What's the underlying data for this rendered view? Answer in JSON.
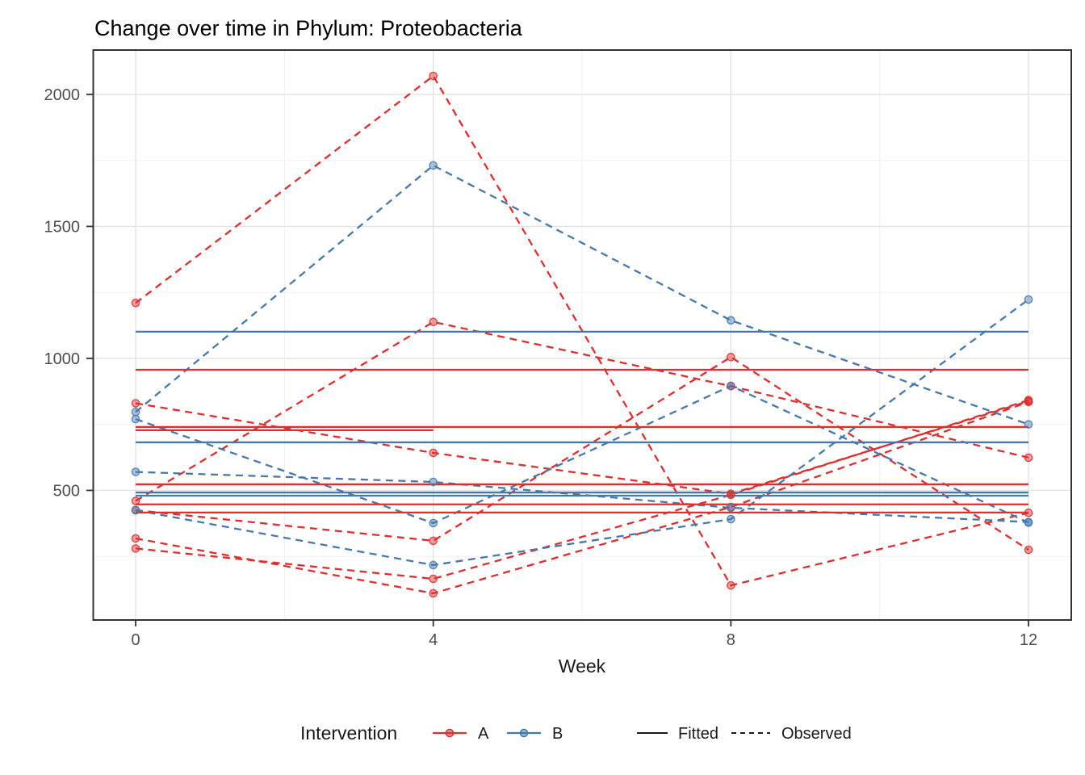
{
  "title": "Change over time in Phylum: Proteobacteria",
  "legend": {
    "title": "Intervention",
    "groups": [
      {
        "label": "A",
        "color": "#E02D2D"
      },
      {
        "label": "B",
        "color": "#4579AE"
      }
    ],
    "linetypes": [
      {
        "label": "Fitted",
        "style": "solid"
      },
      {
        "label": "Observed",
        "style": "dashed"
      }
    ]
  },
  "colors": {
    "group_a": "#E02D2D",
    "group_b": "#4579AE",
    "panel_border": "#333333",
    "grid_major": "#e2e2e2",
    "grid_minor": "#efefef",
    "tick_text": "#4d4d4d",
    "background": "#ffffff"
  },
  "chart_data": {
    "type": "line",
    "title": "Change over time in Phylum: Proteobacteria",
    "xlabel": "Week",
    "ylabel": "",
    "x_weeks": [
      0,
      4,
      8,
      12
    ],
    "x_axis": {
      "label": "Week",
      "ticks": [
        0,
        4,
        8,
        12
      ],
      "minor": [
        2,
        6,
        10
      ],
      "range": [
        -0.57,
        12.575
      ]
    },
    "y_axis": {
      "ticks": [
        500,
        1000,
        1500,
        2000
      ],
      "minor": [
        250,
        750,
        1250,
        1750
      ],
      "range": [
        9,
        2168
      ]
    },
    "legend_position": "bottom",
    "grid": "on",
    "observed_series": [
      {
        "group": "A",
        "values": [
          1210,
          2070,
          140,
          415
        ]
      },
      {
        "group": "A",
        "values": [
          830,
          642,
          487,
          838
        ]
      },
      {
        "group": "A",
        "values": [
          460,
          1138,
          895,
          624
        ]
      },
      {
        "group": "A",
        "values": [
          425,
          309,
          1005,
          275
        ]
      },
      {
        "group": "A",
        "values": [
          318,
          110,
          437,
          835
        ]
      },
      {
        "group": "A",
        "values": [
          280,
          165,
          483,
          842
        ]
      },
      {
        "group": "B",
        "values": [
          797,
          1731,
          1144,
          750
        ]
      },
      {
        "group": "B",
        "values": [
          770,
          376,
          896,
          378
        ]
      },
      {
        "group": "B",
        "values": [
          570,
          532,
          434,
          380
        ]
      },
      {
        "group": "B",
        "values": [
          425,
          217,
          391,
          1223
        ]
      }
    ],
    "fitted_lines": [
      {
        "group": "A",
        "value": 957,
        "weeks": [
          0,
          12
        ]
      },
      {
        "group": "A",
        "value": 740,
        "weeks": [
          0,
          12
        ]
      },
      {
        "group": "A",
        "value": 728,
        "weeks": [
          0,
          4
        ]
      },
      {
        "group": "A",
        "value": 523,
        "weeks": [
          0,
          12
        ]
      },
      {
        "group": "A",
        "value": 447,
        "weeks": [
          0,
          12
        ]
      },
      {
        "group": "A",
        "value": 416,
        "weeks": [
          0,
          12
        ]
      },
      {
        "group": "B",
        "value": 1101,
        "weeks": [
          0,
          12
        ]
      },
      {
        "group": "B",
        "value": 682,
        "weeks": [
          0,
          12
        ]
      },
      {
        "group": "B",
        "value": 492,
        "weeks": [
          0,
          12
        ]
      },
      {
        "group": "B",
        "value": 480,
        "weeks": [
          0,
          12
        ]
      }
    ]
  }
}
